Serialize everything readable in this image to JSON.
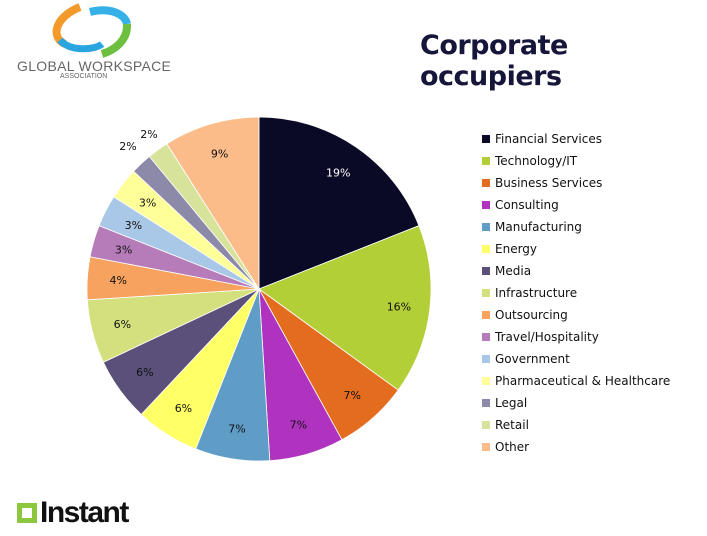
{
  "header": {
    "title": "Corporate occupiers",
    "logo_text": "GLOBAL WORKSPACE",
    "logo_subtext": "ASSOCIATION"
  },
  "footer": {
    "brand": "Instant",
    "brand_color": "#8dc63f"
  },
  "chart_data": {
    "type": "pie",
    "title": "Corporate occupiers",
    "unit": "%",
    "legend_position": "right",
    "start": "12 o'clock, clockwise",
    "categories": [
      "Financial Services",
      "Technology/IT",
      "Business Services",
      "Consulting",
      "Manufacturing",
      "Energy",
      "Media",
      "Infrastructure",
      "Outsourcing",
      "Travel/Hospitality",
      "Government",
      "Pharmaceutical & Healthcare",
      "Legal",
      "Retail",
      "Other"
    ],
    "values": [
      19,
      16,
      7,
      7,
      7,
      6,
      6,
      6,
      4,
      3,
      3,
      3,
      2,
      2,
      9
    ],
    "labels": [
      "19%",
      "16%",
      "7%",
      "7%",
      "7%",
      "6%",
      "6%",
      "6%",
      "4%",
      "3%",
      "3%",
      "3%",
      "2%",
      "2%",
      "9%"
    ],
    "colors": [
      "#0b0a26",
      "#b3cf38",
      "#e36c1e",
      "#b033c0",
      "#5f9dc7",
      "#ffff66",
      "#5b5079",
      "#d4e07e",
      "#f7a25e",
      "#b67cb9",
      "#a9c7e7",
      "#ffff99",
      "#8c89a9",
      "#d7e39b",
      "#fbbc8a"
    ]
  }
}
